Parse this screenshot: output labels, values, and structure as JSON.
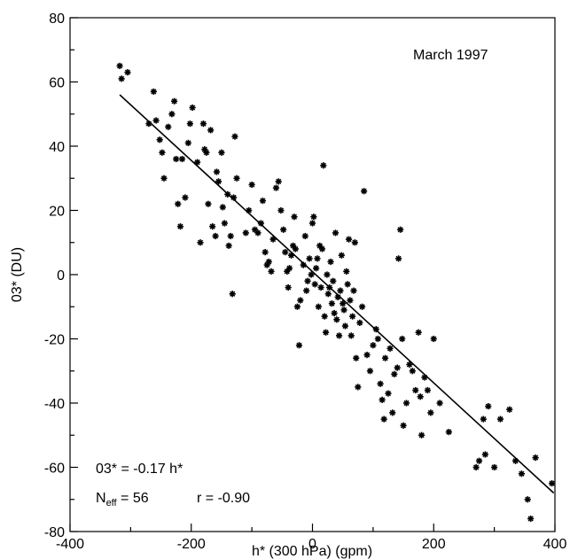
{
  "chart_data": {
    "type": "scatter",
    "title": "March 1997",
    "xlabel": "h* (300 hPa) (gpm)",
    "ylabel": "03* (DU)",
    "xlim": [
      -400,
      400
    ],
    "ylim": [
      -80,
      80
    ],
    "x_ticks": [
      "-400",
      "-200",
      "0",
      "200",
      "400"
    ],
    "y_ticks": [
      "80",
      "60",
      "40",
      "20",
      "0",
      "-20",
      "-40",
      "-60",
      "-80"
    ],
    "grid": false,
    "annotations": {
      "equation": "03* = -0.17 h*",
      "neff_base": "N",
      "neff_sub": "eff",
      "neff_value": " = 56",
      "r_value": "r = -0.90"
    },
    "fit_line": {
      "x": [
        -318,
        398
      ],
      "y": [
        56,
        -68
      ]
    },
    "series": [
      {
        "points": [
          [
            -318,
            65
          ],
          [
            -315,
            61
          ],
          [
            -305,
            63
          ],
          [
            -270,
            47
          ],
          [
            -262,
            57
          ],
          [
            -258,
            48
          ],
          [
            -252,
            42
          ],
          [
            -248,
            38
          ],
          [
            -245,
            30
          ],
          [
            -238,
            46
          ],
          [
            -232,
            50
          ],
          [
            -228,
            54
          ],
          [
            -225,
            36
          ],
          [
            -222,
            22
          ],
          [
            -218,
            15
          ],
          [
            -215,
            36
          ],
          [
            -210,
            24
          ],
          [
            -205,
            41
          ],
          [
            -202,
            47
          ],
          [
            -198,
            52
          ],
          [
            -190,
            35
          ],
          [
            -185,
            10
          ],
          [
            -180,
            47
          ],
          [
            -178,
            39
          ],
          [
            -175,
            38
          ],
          [
            -172,
            22
          ],
          [
            -168,
            45
          ],
          [
            -165,
            15
          ],
          [
            -160,
            12
          ],
          [
            -158,
            32
          ],
          [
            -155,
            29
          ],
          [
            -150,
            38
          ],
          [
            -148,
            21
          ],
          [
            -145,
            16
          ],
          [
            -140,
            25
          ],
          [
            -138,
            9
          ],
          [
            -135,
            12
          ],
          [
            -132,
            -6
          ],
          [
            -130,
            24
          ],
          [
            -128,
            43
          ],
          [
            -125,
            30
          ],
          [
            -110,
            13
          ],
          [
            -105,
            20
          ],
          [
            -100,
            28
          ],
          [
            -95,
            14
          ],
          [
            -90,
            13
          ],
          [
            -85,
            16
          ],
          [
            -82,
            23
          ],
          [
            -78,
            7
          ],
          [
            -75,
            3
          ],
          [
            -72,
            4
          ],
          [
            -68,
            1
          ],
          [
            -65,
            11
          ],
          [
            -60,
            27
          ],
          [
            -56,
            29
          ],
          [
            -52,
            20
          ],
          [
            -48,
            14
          ],
          [
            -45,
            7
          ],
          [
            -42,
            1
          ],
          [
            -40,
            -4
          ],
          [
            -38,
            2
          ],
          [
            -35,
            6
          ],
          [
            -32,
            9
          ],
          [
            -30,
            18
          ],
          [
            -28,
            8
          ],
          [
            -25,
            -10
          ],
          [
            -22,
            -22
          ],
          [
            -20,
            -8
          ],
          [
            -15,
            3
          ],
          [
            -12,
            12
          ],
          [
            -10,
            -5
          ],
          [
            -8,
            -2
          ],
          [
            -5,
            5
          ],
          [
            -2,
            0
          ],
          [
            0,
            16
          ],
          [
            2,
            18
          ],
          [
            4,
            -3
          ],
          [
            6,
            2
          ],
          [
            8,
            5
          ],
          [
            10,
            -10
          ],
          [
            12,
            9
          ],
          [
            14,
            -4
          ],
          [
            16,
            8
          ],
          [
            18,
            34
          ],
          [
            20,
            -13
          ],
          [
            22,
            -18
          ],
          [
            24,
            0
          ],
          [
            26,
            -6
          ],
          [
            28,
            -4
          ],
          [
            30,
            4
          ],
          [
            32,
            -9
          ],
          [
            34,
            -2
          ],
          [
            36,
            -12
          ],
          [
            38,
            13
          ],
          [
            40,
            -14
          ],
          [
            42,
            -7
          ],
          [
            44,
            -19
          ],
          [
            46,
            -5
          ],
          [
            48,
            6
          ],
          [
            50,
            -9
          ],
          [
            52,
            -11
          ],
          [
            54,
            -16
          ],
          [
            56,
            1
          ],
          [
            58,
            -3
          ],
          [
            60,
            11
          ],
          [
            62,
            -8
          ],
          [
            64,
            -19
          ],
          [
            66,
            -13
          ],
          [
            68,
            -5
          ],
          [
            70,
            10
          ],
          [
            72,
            -26
          ],
          [
            75,
            -35
          ],
          [
            78,
            -15
          ],
          [
            82,
            -10
          ],
          [
            85,
            26
          ],
          [
            90,
            -25
          ],
          [
            95,
            -30
          ],
          [
            100,
            -22
          ],
          [
            105,
            -17
          ],
          [
            108,
            -20
          ],
          [
            112,
            -34
          ],
          [
            115,
            -39
          ],
          [
            118,
            -45
          ],
          [
            120,
            -26
          ],
          [
            125,
            -37
          ],
          [
            128,
            -23
          ],
          [
            132,
            -43
          ],
          [
            135,
            -31
          ],
          [
            140,
            -29
          ],
          [
            142,
            5
          ],
          [
            145,
            14
          ],
          [
            148,
            -20
          ],
          [
            150,
            -47
          ],
          [
            155,
            -40
          ],
          [
            160,
            -28
          ],
          [
            165,
            -30
          ],
          [
            170,
            -36
          ],
          [
            175,
            -18
          ],
          [
            178,
            -38
          ],
          [
            180,
            -50
          ],
          [
            185,
            -32
          ],
          [
            190,
            -36
          ],
          [
            195,
            -43
          ],
          [
            200,
            -20
          ],
          [
            210,
            -40
          ],
          [
            225,
            -49
          ],
          [
            270,
            -60
          ],
          [
            275,
            -58
          ],
          [
            282,
            -45
          ],
          [
            285,
            -56
          ],
          [
            290,
            -41
          ],
          [
            300,
            -60
          ],
          [
            310,
            -45
          ],
          [
            325,
            -42
          ],
          [
            335,
            -58
          ],
          [
            345,
            -62
          ],
          [
            355,
            -70
          ],
          [
            360,
            -76
          ],
          [
            368,
            -57
          ],
          [
            395,
            -65
          ]
        ]
      }
    ]
  }
}
